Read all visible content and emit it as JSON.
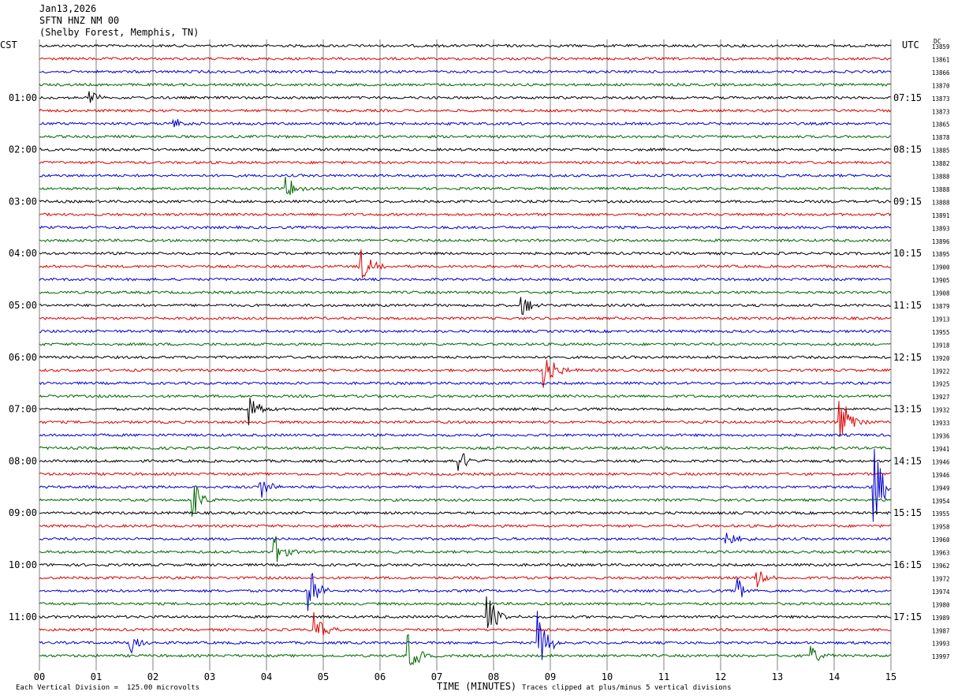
{
  "header": {
    "date": "Jan13,2026",
    "station": "SFTN HNZ NM 00",
    "location": "(Shelby Forest, Memphis, TN)"
  },
  "left_tz": "CST",
  "right_tz": "UTC",
  "dc_label": "DC",
  "footer": {
    "scale": "Each Vertical Division =  125.00 microvolts",
    "clip": "Traces clipped at plus/minus 5 vertical divisions",
    "xaxis_title": "TIME (MINUTES)"
  },
  "colors": {
    "black": "#000000",
    "red": "#dd0000",
    "blue": "#0000cc",
    "green": "#006600",
    "grid": "#808080"
  },
  "chart_data": {
    "type": "line",
    "title": "SFTN HNZ NM 00",
    "xlabel": "TIME (MINUTES)",
    "xlim": [
      0,
      15
    ],
    "x_ticks": [
      "00",
      "01",
      "02",
      "03",
      "04",
      "05",
      "06",
      "07",
      "08",
      "09",
      "10",
      "11",
      "12",
      "13",
      "14",
      "15"
    ],
    "left_time_labels": [
      "01:00",
      "02:00",
      "03:00",
      "04:00",
      "05:00",
      "06:00",
      "07:00",
      "08:00",
      "09:00",
      "10:00",
      "11:00"
    ],
    "right_time_labels": [
      "07:15",
      "08:15",
      "09:15",
      "10:15",
      "11:15",
      "12:15",
      "13:15",
      "14:15",
      "15:15",
      "16:15",
      "17:15"
    ],
    "trace_colors_cycle": [
      "black",
      "red",
      "blue",
      "green"
    ],
    "dc_offsets": [
      13859,
      13861,
      13866,
      13870,
      13873,
      13873,
      13865,
      13878,
      13885,
      13882,
      13888,
      13888,
      13888,
      13891,
      13893,
      13896,
      13895,
      13900,
      13905,
      13908,
      13879,
      13913,
      13955,
      13918,
      13920,
      13922,
      13925,
      13927,
      13932,
      13933,
      13936,
      13941,
      13946,
      13946,
      13949,
      13954,
      13955,
      13958,
      13960,
      13963,
      13962,
      13972,
      13974,
      13980,
      13989,
      13987,
      13993,
      13997
    ],
    "events": [
      {
        "trace": 4,
        "minute": 0.9,
        "amp": 0.6
      },
      {
        "trace": 6,
        "minute": 2.35,
        "amp": 0.6
      },
      {
        "trace": 11,
        "minute": 4.35,
        "amp": 1.0
      },
      {
        "trace": 17,
        "minute": 5.65,
        "amp": 1.6
      },
      {
        "trace": 20,
        "minute": 8.5,
        "amp": 1.0
      },
      {
        "trace": 25,
        "minute": 8.9,
        "amp": 2.0
      },
      {
        "trace": 28,
        "minute": 3.7,
        "amp": 1.4
      },
      {
        "trace": 29,
        "minute": 14.1,
        "amp": 2.8
      },
      {
        "trace": 32,
        "minute": 7.4,
        "amp": 1.0
      },
      {
        "trace": 34,
        "minute": 3.9,
        "amp": 1.0
      },
      {
        "trace": 34,
        "minute": 14.7,
        "amp": 3.5
      },
      {
        "trace": 35,
        "minute": 2.7,
        "amp": 1.6
      },
      {
        "trace": 38,
        "minute": 12.1,
        "amp": 0.9
      },
      {
        "trace": 39,
        "minute": 4.15,
        "amp": 1.4
      },
      {
        "trace": 41,
        "minute": 12.65,
        "amp": 0.8
      },
      {
        "trace": 42,
        "minute": 4.75,
        "amp": 2.0
      },
      {
        "trace": 42,
        "minute": 12.3,
        "amp": 1.0
      },
      {
        "trace": 44,
        "minute": 7.9,
        "amp": 1.8
      },
      {
        "trace": 45,
        "minute": 4.85,
        "amp": 1.4
      },
      {
        "trace": 46,
        "minute": 8.8,
        "amp": 2.4
      },
      {
        "trace": 46,
        "minute": 1.6,
        "amp": 1.0
      },
      {
        "trace": 47,
        "minute": 6.5,
        "amp": 1.6
      },
      {
        "trace": 47,
        "minute": 13.6,
        "amp": 0.8
      }
    ]
  }
}
